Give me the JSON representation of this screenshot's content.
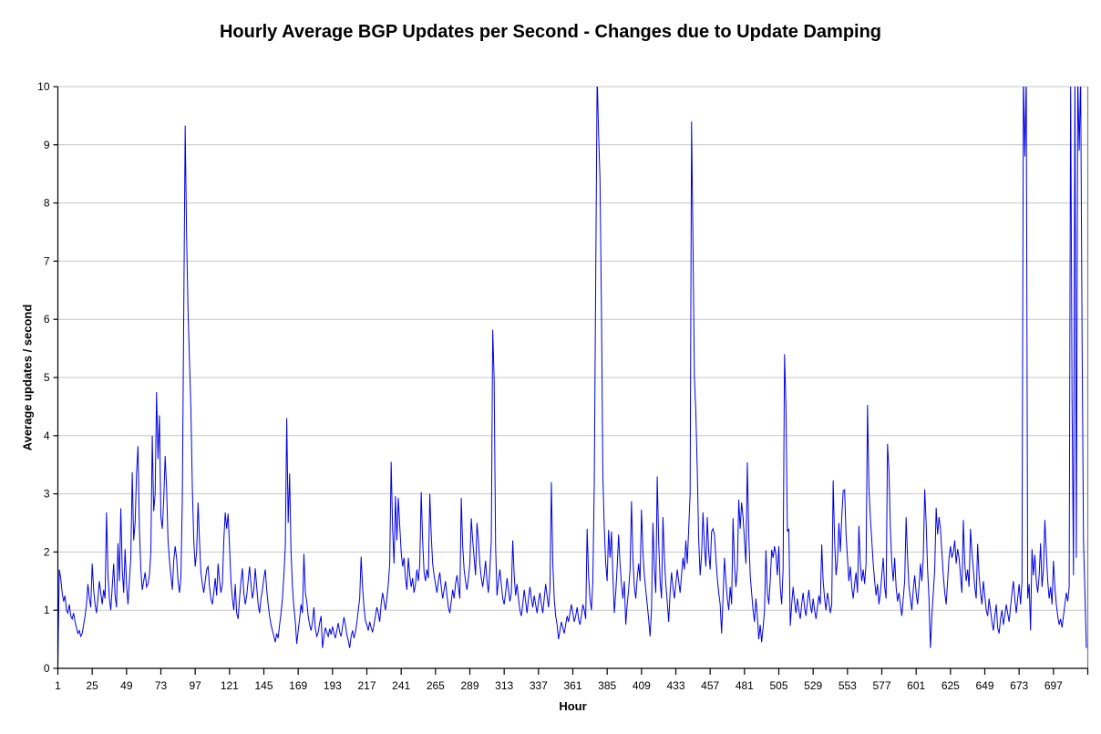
{
  "chart_data": {
    "type": "line",
    "title": "Hourly Average BGP Updates per Second - Changes due to Update Damping",
    "xlabel": "Hour",
    "ylabel": "Average updates / second",
    "x_range": [
      1,
      721
    ],
    "y_range": [
      0,
      10
    ],
    "yticks": [
      0,
      1,
      2,
      3,
      4,
      5,
      6,
      7,
      8,
      9,
      10
    ],
    "xticks": [
      1,
      25,
      49,
      73,
      97,
      121,
      145,
      169,
      193,
      217,
      241,
      265,
      289,
      313,
      337,
      361,
      385,
      409,
      433,
      457,
      481,
      505,
      529,
      553,
      577,
      601,
      625,
      649,
      673,
      697
    ],
    "grid": "horizontal-only",
    "legend": "none",
    "colors": {
      "line": "#0000E6",
      "grid": "#C6C6C6",
      "axis": "#000000",
      "border": "#808080",
      "background": "#FFFFFF"
    },
    "x_start_hour": 1,
    "values": [
      0.05,
      1.7,
      1.55,
      1.3,
      1.15,
      1.25,
      1.0,
      0.95,
      1.1,
      0.9,
      0.85,
      0.95,
      0.8,
      0.7,
      0.6,
      0.65,
      0.55,
      0.6,
      0.75,
      0.9,
      1.1,
      1.45,
      1.2,
      1.05,
      1.8,
      1.35,
      1.1,
      0.95,
      1.2,
      1.5,
      1.3,
      1.1,
      1.35,
      1.2,
      2.68,
      1.6,
      1.2,
      1.0,
      1.4,
      1.8,
      1.25,
      1.05,
      2.15,
      1.5,
      2.75,
      1.7,
      1.3,
      2.05,
      1.45,
      1.1,
      1.5,
      1.9,
      3.37,
      2.2,
      2.5,
      3.35,
      3.82,
      2.4,
      1.7,
      1.35,
      1.5,
      1.65,
      1.4,
      1.45,
      1.6,
      2.0,
      4.0,
      2.7,
      3.0,
      4.75,
      3.6,
      4.35,
      2.6,
      2.4,
      2.9,
      3.65,
      3.1,
      2.2,
      1.85,
      1.6,
      1.35,
      1.85,
      2.1,
      1.9,
      1.5,
      1.3,
      1.55,
      2.9,
      6.1,
      9.33,
      7.4,
      6.15,
      5.3,
      4.45,
      3.1,
      2.2,
      1.75,
      2.0,
      2.85,
      2.2,
      1.65,
      1.45,
      1.3,
      1.5,
      1.7,
      1.75,
      1.4,
      1.2,
      1.1,
      1.3,
      1.55,
      1.25,
      1.8,
      1.5,
      1.3,
      1.45,
      2.2,
      2.68,
      2.4,
      2.66,
      2.1,
      1.5,
      1.2,
      1.0,
      1.45,
      0.95,
      0.85,
      1.2,
      1.5,
      1.72,
      1.3,
      1.1,
      1.25,
      1.5,
      1.75,
      1.45,
      1.2,
      1.35,
      1.72,
      1.4,
      1.1,
      0.95,
      1.2,
      1.35,
      1.55,
      1.7,
      1.35,
      1.1,
      0.9,
      0.75,
      0.65,
      0.55,
      0.45,
      0.6,
      0.52,
      0.75,
      0.95,
      1.2,
      1.6,
      2.1,
      4.3,
      2.5,
      3.35,
      2.0,
      1.4,
      1.05,
      0.8,
      0.42,
      0.65,
      0.85,
      1.1,
      0.95,
      1.97,
      1.3,
      1.15,
      0.9,
      0.75,
      0.65,
      0.8,
      1.05,
      0.68,
      0.55,
      0.62,
      0.78,
      0.9,
      0.35,
      0.55,
      0.7,
      0.62,
      0.55,
      0.68,
      0.58,
      0.72,
      0.6,
      0.52,
      0.65,
      0.78,
      0.62,
      0.55,
      0.72,
      0.88,
      0.75,
      0.58,
      0.48,
      0.35,
      0.55,
      0.65,
      0.52,
      0.62,
      0.78,
      1.0,
      1.2,
      1.92,
      1.4,
      1.05,
      0.82,
      0.75,
      0.65,
      0.8,
      0.7,
      0.62,
      0.75,
      0.9,
      1.05,
      0.95,
      0.8,
      1.1,
      1.3,
      1.15,
      1.0,
      1.2,
      1.45,
      1.8,
      3.55,
      2.4,
      1.8,
      2.96,
      2.2,
      2.93,
      2.45,
      2.0,
      1.75,
      1.9,
      1.55,
      1.35,
      1.9,
      1.6,
      1.4,
      1.55,
      1.3,
      1.45,
      1.7,
      1.5,
      1.8,
      3.03,
      2.2,
      1.65,
      1.5,
      1.7,
      1.55,
      3.0,
      2.3,
      1.8,
      1.6,
      1.45,
      1.3,
      1.5,
      1.65,
      1.4,
      1.2,
      1.35,
      1.5,
      1.25,
      1.05,
      0.95,
      1.15,
      1.35,
      1.2,
      1.45,
      1.6,
      1.4,
      1.2,
      2.93,
      2.1,
      1.7,
      1.5,
      1.35,
      1.55,
      1.8,
      2.58,
      2.2,
      1.9,
      1.6,
      2.5,
      2.2,
      1.8,
      1.55,
      1.4,
      1.6,
      1.85,
      1.5,
      1.3,
      1.7,
      2.2,
      5.82,
      4.97,
      2.1,
      1.25,
      1.5,
      1.7,
      1.45,
      1.2,
      1.1,
      1.3,
      1.55,
      1.35,
      1.15,
      1.3,
      2.2,
      1.6,
      1.25,
      1.45,
      1.2,
      1.0,
      0.9,
      1.1,
      1.35,
      1.15,
      0.95,
      1.2,
      1.4,
      1.2,
      1.05,
      1.25,
      1.1,
      0.95,
      1.15,
      1.3,
      1.1,
      0.95,
      1.2,
      1.45,
      1.25,
      1.05,
      1.35,
      3.2,
      1.8,
      1.2,
      0.9,
      0.75,
      0.5,
      0.65,
      0.8,
      0.7,
      0.6,
      0.75,
      0.9,
      0.8,
      0.95,
      1.1,
      0.95,
      0.8,
      0.9,
      1.05,
      0.85,
      0.75,
      0.9,
      1.1,
      1.0,
      0.85,
      2.4,
      1.6,
      1.2,
      1.0,
      1.5,
      3.2,
      6.7,
      10.2,
      9.2,
      8.4,
      6.2,
      3.3,
      2.4,
      1.8,
      1.5,
      2.38,
      1.9,
      2.35,
      1.6,
      0.95,
      1.3,
      1.75,
      2.3,
      1.8,
      1.45,
      1.2,
      1.5,
      0.75,
      1.1,
      1.35,
      1.7,
      2.87,
      1.9,
      1.4,
      1.2,
      1.55,
      1.8,
      1.5,
      2.73,
      2.0,
      1.6,
      1.35,
      1.1,
      0.85,
      0.55,
      1.0,
      2.5,
      1.7,
      1.3,
      3.3,
      2.2,
      1.5,
      1.2,
      2.6,
      1.9,
      1.45,
      1.15,
      0.8,
      1.3,
      1.65,
      1.4,
      1.2,
      1.45,
      1.7,
      1.5,
      1.3,
      1.6,
      1.9,
      1.7,
      2.2,
      1.8,
      2.4,
      3.0,
      9.4,
      7.3,
      5.0,
      4.4,
      3.4,
      2.2,
      1.6,
      1.95,
      2.68,
      2.1,
      1.75,
      2.6,
      2.0,
      1.7,
      2.35,
      2.4,
      2.3,
      1.9,
      1.55,
      1.3,
      1.1,
      0.6,
      1.2,
      1.9,
      1.5,
      1.2,
      1.0,
      1.4,
      1.1,
      2.58,
      1.8,
      1.4,
      1.7,
      2.9,
      2.4,
      2.85,
      2.6,
      2.2,
      1.8,
      3.54,
      2.3,
      1.6,
      1.3,
      1.0,
      0.8,
      1.2,
      0.9,
      0.5,
      0.75,
      0.45,
      0.7,
      1.0,
      2.03,
      1.3,
      1.1,
      1.5,
      2.04,
      1.9,
      2.1,
      1.95,
      1.6,
      2.1,
      1.4,
      1.1,
      1.7,
      5.4,
      4.5,
      2.35,
      2.4,
      0.73,
      1.1,
      1.4,
      1.15,
      0.95,
      1.2,
      1.0,
      0.85,
      1.1,
      1.3,
      1.05,
      0.9,
      1.15,
      1.35,
      1.1,
      0.95,
      1.2,
      1.0,
      0.85,
      1.05,
      1.25,
      1.1,
      2.13,
      1.5,
      1.2,
      1.0,
      1.3,
      1.15,
      0.95,
      1.1,
      3.23,
      2.2,
      1.6,
      1.85,
      2.5,
      2.0,
      2.6,
      3.05,
      3.07,
      2.3,
      1.9,
      1.5,
      1.75,
      1.4,
      1.2,
      1.45,
      1.65,
      1.3,
      2.45,
      1.8,
      1.5,
      1.7,
      1.45,
      1.8,
      4.53,
      3.1,
      2.6,
      2.2,
      1.8,
      1.5,
      1.25,
      1.45,
      1.1,
      1.3,
      1.6,
      1.9,
      1.4,
      1.2,
      3.86,
      3.4,
      2.4,
      1.8,
      1.5,
      1.9,
      1.4,
      1.15,
      1.3,
      1.1,
      0.9,
      1.2,
      1.5,
      2.6,
      1.9,
      1.4,
      1.2,
      1.0,
      1.35,
      1.6,
      1.3,
      1.1,
      1.4,
      1.8,
      1.5,
      1.9,
      3.08,
      2.5,
      1.7,
      1.2,
      0.35,
      0.9,
      1.3,
      1.7,
      2.76,
      2.3,
      2.6,
      2.4,
      2.0,
      1.6,
      1.3,
      1.1,
      1.5,
      1.9,
      2.1,
      1.9,
      2.0,
      2.2,
      1.8,
      2.05,
      1.9,
      1.6,
      1.3,
      2.55,
      1.8,
      1.5,
      1.7,
      1.4,
      2.4,
      2.0,
      1.7,
      1.4,
      1.2,
      2.14,
      1.6,
      1.3,
      1.1,
      1.5,
      1.25,
      1.0,
      0.9,
      1.2,
      1.0,
      0.8,
      0.65,
      0.9,
      1.1,
      0.7,
      0.6,
      0.85,
      1.0,
      0.75,
      0.9,
      1.1,
      0.95,
      0.8,
      1.05,
      1.3,
      1.5,
      1.2,
      0.95,
      1.2,
      1.45,
      1.1,
      1.5,
      10.2,
      8.8,
      10.2,
      1.2,
      1.45,
      0.65,
      2.05,
      1.6,
      1.95,
      1.5,
      1.3,
      1.6,
      2.15,
      1.4,
      1.7,
      2.55,
      2.0,
      1.5,
      1.2,
      1.4,
      1.1,
      1.85,
      1.4,
      1.1,
      0.9,
      0.75,
      0.85,
      0.7,
      0.9,
      1.1,
      1.3,
      1.15,
      1.4,
      10.2,
      4.6,
      1.6,
      10.2,
      1.9,
      10.2,
      8.9,
      10.2,
      5.7,
      2.2,
      1.3,
      0.35
    ]
  }
}
